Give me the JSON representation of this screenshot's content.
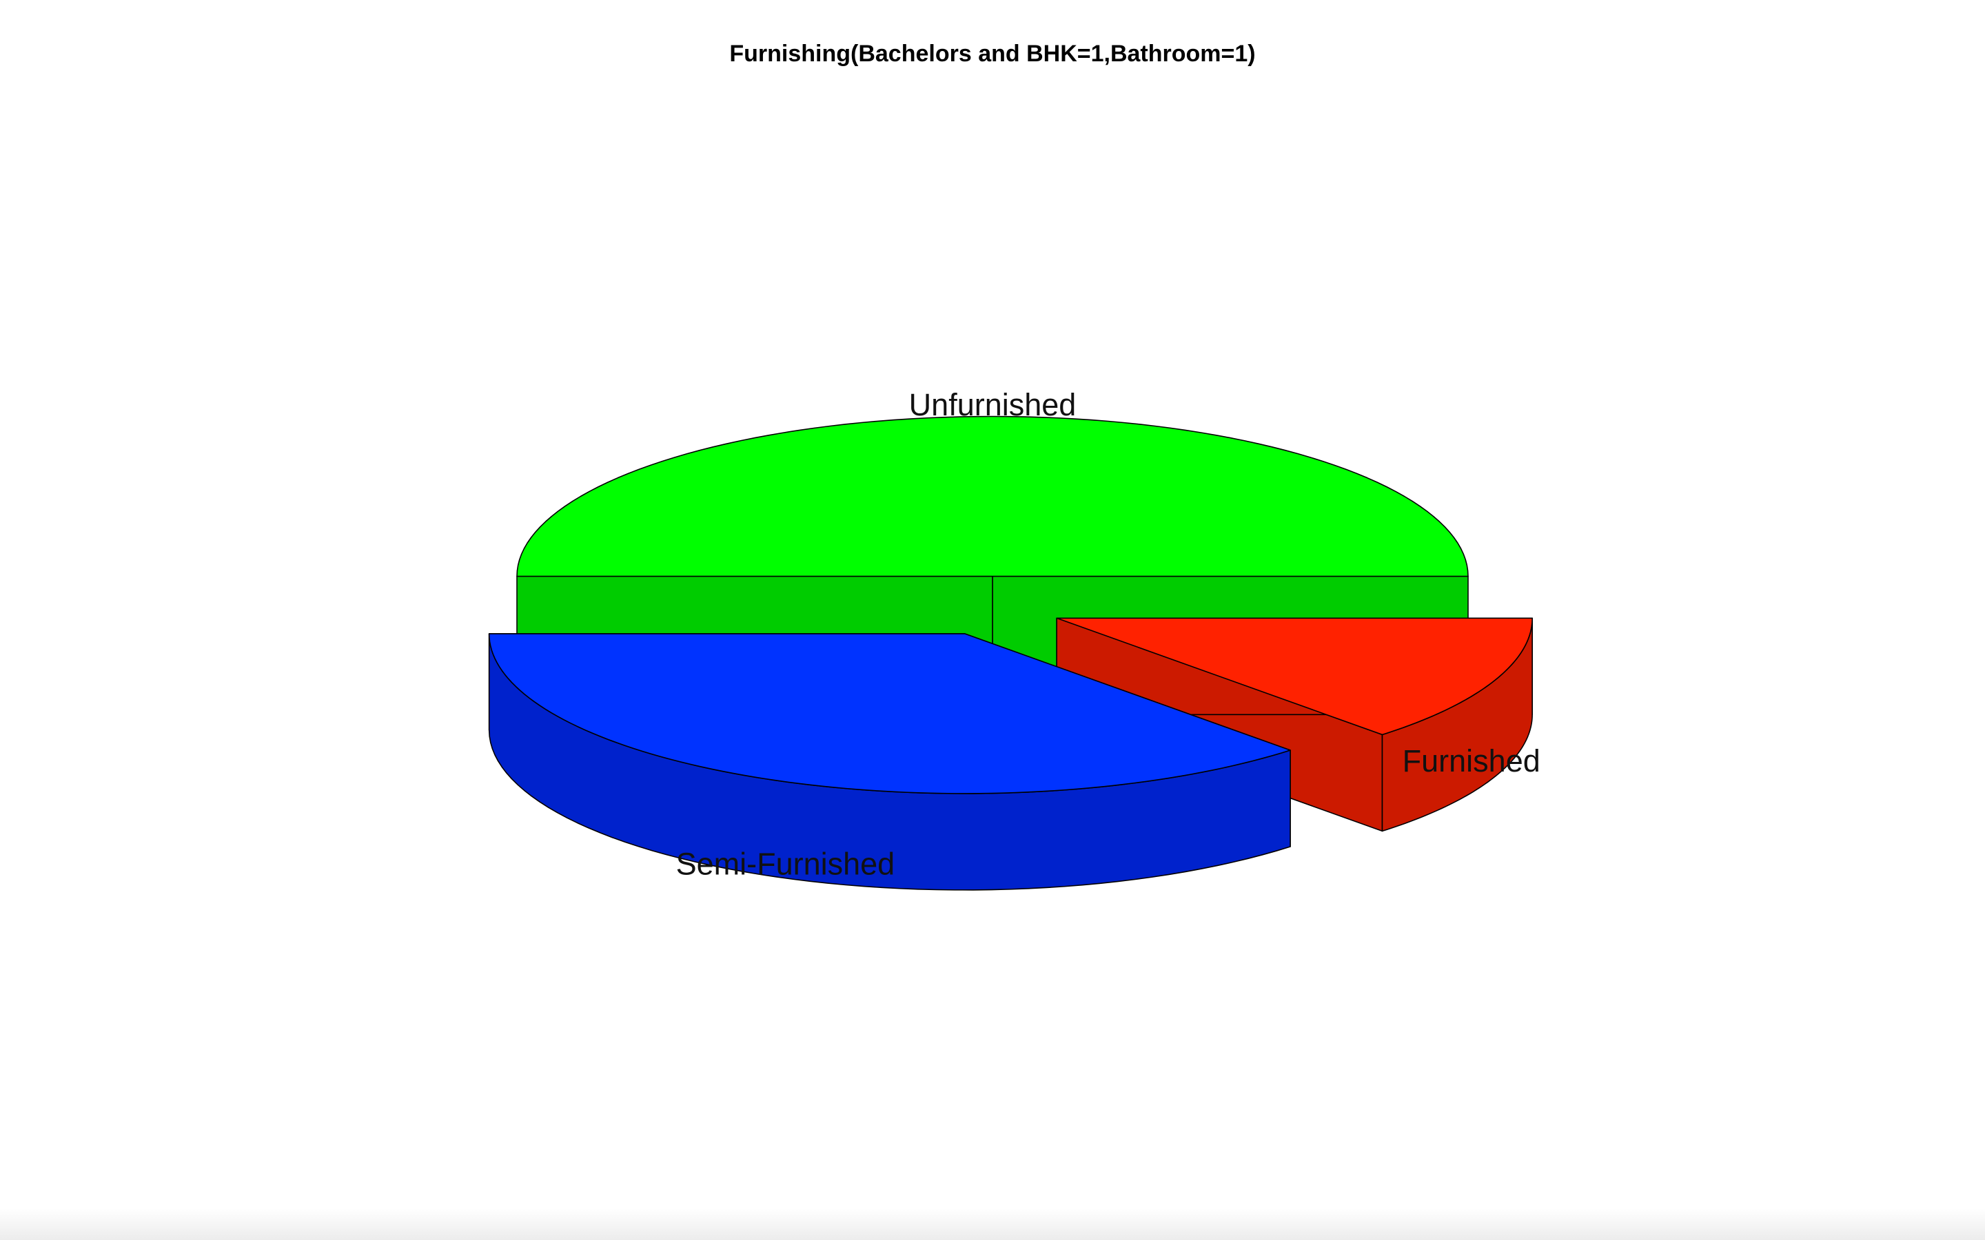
{
  "chart_data": {
    "type": "pie",
    "style": "3d-exploded",
    "title": "Furnishing(Bachelors and BHK=1,Bathroom=1)",
    "categories": [
      "Unfurnished",
      "Semi-Furnished",
      "Furnished"
    ],
    "values": [
      50,
      37,
      13
    ],
    "colors": [
      "#00ff00",
      "#0033ff",
      "#ff2200"
    ],
    "side_colors": [
      "#00cc00",
      "#0022cc",
      "#cc1a00"
    ],
    "legend": "none",
    "grid": false
  }
}
